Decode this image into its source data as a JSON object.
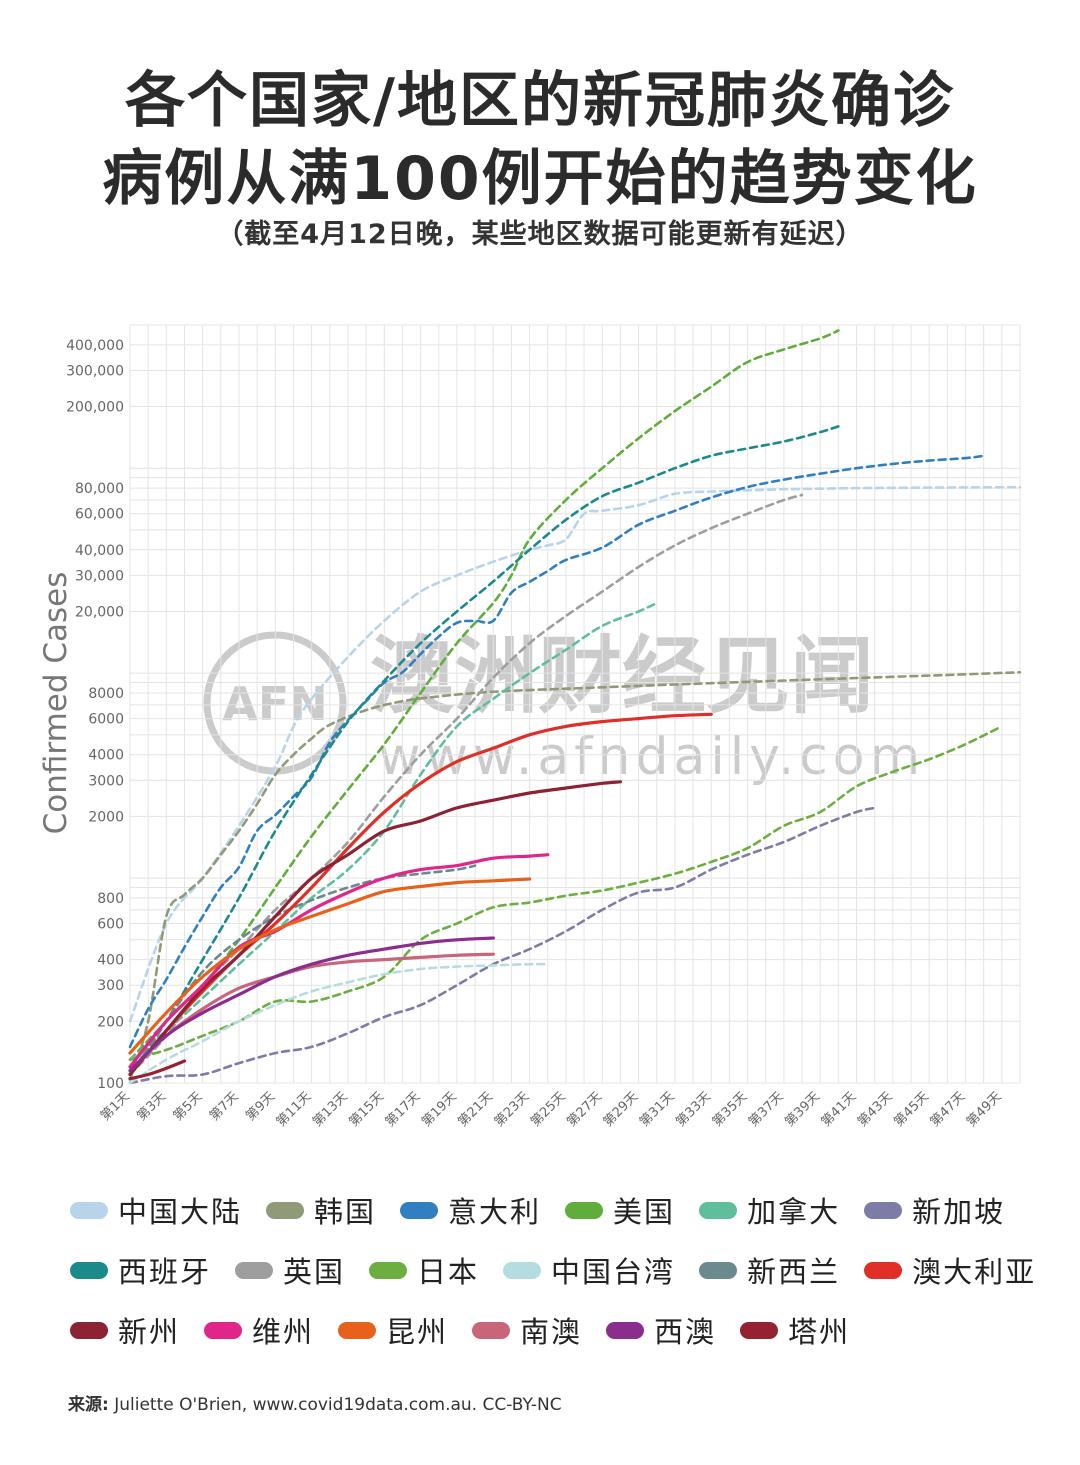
{
  "title_line1": "各个国家/地区的新冠肺炎确诊",
  "title_line2": "病例从满100例开始的趋势变化",
  "subtitle": "（截至4月12日晚，某些地区数据可能更新有延迟）",
  "watermark": {
    "logo": "AFN",
    "name": "澳洲财经见闻",
    "url": "www.afndaily.com"
  },
  "source_label": "来源:",
  "source_text": " Juliette O'Brien, www.covid19data.com.au. CC-BY-NC",
  "chart_data": {
    "type": "line",
    "ylabel": "Confirmed Cases",
    "xlabel": "",
    "yscale": "log",
    "ylim": [
      100,
      500000
    ],
    "xlim": [
      1,
      50
    ],
    "yticks": [
      {
        "v": 100,
        "label": "100"
      },
      {
        "v": 200,
        "label": "200"
      },
      {
        "v": 300,
        "label": "300"
      },
      {
        "v": 400,
        "label": "400"
      },
      {
        "v": 600,
        "label": "600"
      },
      {
        "v": 800,
        "label": "800"
      },
      {
        "v": 2000,
        "label": "2000"
      },
      {
        "v": 3000,
        "label": "3000"
      },
      {
        "v": 4000,
        "label": "4000"
      },
      {
        "v": 6000,
        "label": "6000"
      },
      {
        "v": 8000,
        "label": "8000"
      },
      {
        "v": 20000,
        "label": "20,000"
      },
      {
        "v": 30000,
        "label": "30,000"
      },
      {
        "v": 40000,
        "label": "40,000"
      },
      {
        "v": 60000,
        "label": "60,000"
      },
      {
        "v": 80000,
        "label": "80,000"
      },
      {
        "v": 200000,
        "label": "200,000"
      },
      {
        "v": 300000,
        "label": "300,000"
      },
      {
        "v": 400000,
        "label": "400,000"
      }
    ],
    "xticks": [
      {
        "v": 1,
        "label": "第1天"
      },
      {
        "v": 3,
        "label": "第3天"
      },
      {
        "v": 5,
        "label": "第5天"
      },
      {
        "v": 7,
        "label": "第7天"
      },
      {
        "v": 9,
        "label": "第9天"
      },
      {
        "v": 11,
        "label": "第11天"
      },
      {
        "v": 13,
        "label": "第13天"
      },
      {
        "v": 15,
        "label": "第15天"
      },
      {
        "v": 17,
        "label": "第17天"
      },
      {
        "v": 19,
        "label": "第19天"
      },
      {
        "v": 21,
        "label": "第21天"
      },
      {
        "v": 23,
        "label": "第23天"
      },
      {
        "v": 25,
        "label": "第25天"
      },
      {
        "v": 27,
        "label": "第27天"
      },
      {
        "v": 29,
        "label": "第29天"
      },
      {
        "v": 31,
        "label": "第31天"
      },
      {
        "v": 33,
        "label": "第33天"
      },
      {
        "v": 35,
        "label": "第35天"
      },
      {
        "v": 37,
        "label": "第37天"
      },
      {
        "v": 39,
        "label": "第39天"
      },
      {
        "v": 41,
        "label": "第41天"
      },
      {
        "v": 43,
        "label": "第43天"
      },
      {
        "v": 45,
        "label": "第45天"
      },
      {
        "v": 47,
        "label": "第47天"
      },
      {
        "v": 49,
        "label": "第49天"
      }
    ],
    "grid": true,
    "legend_position": "bottom",
    "series": [
      {
        "name": "中国大陆",
        "color": "#b8d4ea",
        "dashed": true,
        "x": [
          1,
          3,
          5,
          7,
          9,
          10,
          11,
          13,
          15,
          17,
          19,
          21,
          23,
          24,
          25,
          26,
          27,
          29,
          31,
          33,
          35,
          37,
          39,
          41,
          43,
          45,
          47,
          50
        ],
        "y": [
          200,
          600,
          1000,
          1800,
          3500,
          5500,
          7500,
          12000,
          18000,
          25000,
          30000,
          35000,
          40000,
          42000,
          45000,
          60000,
          62000,
          66000,
          75000,
          77000,
          78000,
          79000,
          79500,
          80000,
          80200,
          80400,
          80600,
          80800
        ]
      },
      {
        "name": "韩国",
        "color": "#8f9a78",
        "dashed": true,
        "x": [
          1,
          2,
          3,
          4,
          5,
          6,
          7,
          8,
          9,
          10,
          11,
          12,
          14,
          16,
          18,
          20,
          22,
          25,
          28,
          31,
          34,
          37,
          40,
          43,
          46,
          50
        ],
        "y": [
          104,
          200,
          650,
          830,
          1000,
          1300,
          1700,
          2300,
          3200,
          4000,
          4800,
          5600,
          6600,
          7300,
          7700,
          8000,
          8200,
          8400,
          8600,
          8800,
          9000,
          9200,
          9400,
          9600,
          9800,
          10100
        ]
      },
      {
        "name": "意大利",
        "color": "#2f7fc1",
        "dashed": true,
        "x": [
          1,
          2,
          3,
          4,
          5,
          6,
          7,
          8,
          9,
          10,
          11,
          12,
          13,
          14,
          15,
          16,
          17,
          18,
          19,
          20,
          21,
          22,
          23,
          24,
          25,
          27,
          29,
          31,
          33,
          35,
          37,
          39,
          41,
          43,
          45,
          47,
          48
        ],
        "y": [
          150,
          230,
          320,
          460,
          650,
          900,
          1130,
          1700,
          2030,
          2500,
          3100,
          4600,
          5900,
          7300,
          9000,
          10100,
          12400,
          15100,
          17600,
          18000,
          18000,
          24700,
          27900,
          31500,
          35700,
          41000,
          53000,
          62000,
          72000,
          81000,
          88000,
          94000,
          100000,
          105000,
          109000,
          112000,
          115000
        ]
      },
      {
        "name": "美国",
        "color": "#5fae3b",
        "dashed": true,
        "x": [
          1,
          3,
          5,
          7,
          9,
          11,
          13,
          15,
          17,
          19,
          21,
          22,
          23,
          25,
          27,
          29,
          31,
          33,
          35,
          37,
          39,
          40
        ],
        "y": [
          130,
          200,
          300,
          500,
          900,
          1600,
          2700,
          4500,
          8000,
          14000,
          22000,
          30000,
          45000,
          70000,
          100000,
          140000,
          190000,
          250000,
          330000,
          380000,
          430000,
          470000
        ]
      },
      {
        "name": "加拿大",
        "color": "#5fbf9c",
        "dashed": true,
        "x": [
          1,
          3,
          5,
          7,
          9,
          11,
          13,
          15,
          17,
          19,
          21,
          23,
          25,
          27,
          29,
          30
        ],
        "y": [
          130,
          180,
          260,
          380,
          550,
          800,
          1100,
          1700,
          3200,
          5500,
          7500,
          10000,
          13000,
          17000,
          20000,
          22000
        ]
      },
      {
        "name": "新加坡",
        "color": "#7c7ca6",
        "dashed": true,
        "x": [
          1,
          3,
          5,
          7,
          9,
          11,
          13,
          15,
          17,
          19,
          21,
          23,
          25,
          27,
          29,
          31,
          33,
          35,
          37,
          39,
          41,
          42
        ],
        "y": [
          100,
          108,
          110,
          125,
          140,
          150,
          175,
          210,
          240,
          300,
          380,
          450,
          550,
          700,
          850,
          900,
          1100,
          1300,
          1500,
          1800,
          2100,
          2200
        ]
      },
      {
        "name": "西班牙",
        "color": "#1b8a8a",
        "dashed": true,
        "x": [
          1,
          3,
          5,
          7,
          9,
          11,
          13,
          15,
          17,
          19,
          21,
          23,
          25,
          27,
          29,
          31,
          33,
          35,
          37,
          39,
          40
        ],
        "y": [
          110,
          200,
          400,
          800,
          1700,
          3200,
          5800,
          9200,
          14000,
          20000,
          28000,
          40000,
          56000,
          73000,
          85000,
          100000,
          115000,
          125000,
          135000,
          150000,
          160000
        ]
      },
      {
        "name": "英国",
        "color": "#9e9e9e",
        "dashed": true,
        "x": [
          1,
          3,
          5,
          7,
          9,
          11,
          13,
          15,
          17,
          19,
          21,
          23,
          25,
          27,
          29,
          31,
          33,
          35,
          37,
          38
        ],
        "y": [
          110,
          170,
          300,
          450,
          700,
          1000,
          1500,
          2500,
          4000,
          6000,
          9500,
          14000,
          19000,
          25000,
          33000,
          42000,
          51000,
          60000,
          70000,
          74000
        ]
      },
      {
        "name": "日本",
        "color": "#6cae3f",
        "dashed": true,
        "x": [
          1,
          3,
          5,
          7,
          9,
          11,
          13,
          15,
          17,
          19,
          21,
          23,
          25,
          27,
          29,
          31,
          33,
          35,
          37,
          39,
          41,
          43,
          45,
          47,
          49
        ],
        "y": [
          130,
          145,
          170,
          200,
          250,
          250,
          280,
          330,
          500,
          600,
          720,
          760,
          820,
          870,
          950,
          1050,
          1200,
          1400,
          1800,
          2100,
          2800,
          3300,
          3800,
          4500,
          5500
        ]
      },
      {
        "name": "中国台湾",
        "color": "#b5dde0",
        "dashed": true,
        "x": [
          1,
          3,
          5,
          7,
          9,
          11,
          13,
          15,
          17,
          19,
          21,
          23,
          24
        ],
        "y": [
          100,
          130,
          160,
          200,
          240,
          280,
          310,
          340,
          360,
          370,
          375,
          380,
          380
        ]
      },
      {
        "name": "新西兰",
        "color": "#6a8a8e",
        "dashed": true,
        "x": [
          1,
          3,
          5,
          7,
          9,
          11,
          13,
          15,
          17,
          19,
          20
        ],
        "y": [
          110,
          200,
          350,
          500,
          650,
          780,
          900,
          1000,
          1050,
          1100,
          1150
        ]
      },
      {
        "name": "澳大利亚",
        "color": "#e02f27",
        "dashed": false,
        "x": [
          1,
          3,
          5,
          7,
          9,
          11,
          13,
          15,
          17,
          19,
          21,
          23,
          25,
          27,
          29,
          31,
          33
        ],
        "y": [
          110,
          180,
          280,
          420,
          600,
          900,
          1400,
          2100,
          2900,
          3700,
          4300,
          5000,
          5500,
          5800,
          6000,
          6200,
          6300
        ]
      },
      {
        "name": "新州",
        "color": "#8c2233",
        "dashed": false,
        "x": [
          1,
          3,
          5,
          7,
          9,
          11,
          13,
          15,
          17,
          19,
          21,
          23,
          25,
          27,
          28
        ],
        "y": [
          110,
          180,
          290,
          420,
          650,
          1000,
          1300,
          1700,
          1900,
          2200,
          2400,
          2600,
          2750,
          2900,
          2950
        ]
      },
      {
        "name": "维州",
        "color": "#e0268a",
        "dashed": false,
        "x": [
          1,
          3,
          5,
          7,
          9,
          11,
          13,
          15,
          17,
          19,
          21,
          23,
          24
        ],
        "y": [
          120,
          200,
          300,
          460,
          550,
          700,
          850,
          1000,
          1100,
          1150,
          1250,
          1280,
          1300
        ]
      },
      {
        "name": "昆州",
        "color": "#e8611a",
        "dashed": false,
        "x": [
          1,
          3,
          5,
          7,
          9,
          11,
          13,
          15,
          17,
          19,
          21,
          23
        ],
        "y": [
          140,
          220,
          330,
          450,
          560,
          650,
          750,
          860,
          910,
          950,
          970,
          990
        ]
      },
      {
        "name": "南澳",
        "color": "#c9657a",
        "dashed": false,
        "x": [
          1,
          3,
          5,
          7,
          9,
          11,
          13,
          15,
          17,
          19,
          21
        ],
        "y": [
          115,
          170,
          230,
          290,
          330,
          370,
          390,
          400,
          410,
          420,
          425
        ]
      },
      {
        "name": "西澳",
        "color": "#8a2d8e",
        "dashed": false,
        "x": [
          1,
          3,
          5,
          7,
          9,
          11,
          13,
          15,
          17,
          19,
          21
        ],
        "y": [
          115,
          170,
          220,
          270,
          330,
          380,
          420,
          450,
          480,
          500,
          510
        ]
      },
      {
        "name": "塔州",
        "color": "#952230",
        "dashed": false,
        "x": [
          1,
          2,
          3,
          4
        ],
        "y": [
          105,
          110,
          118,
          128
        ]
      }
    ]
  }
}
